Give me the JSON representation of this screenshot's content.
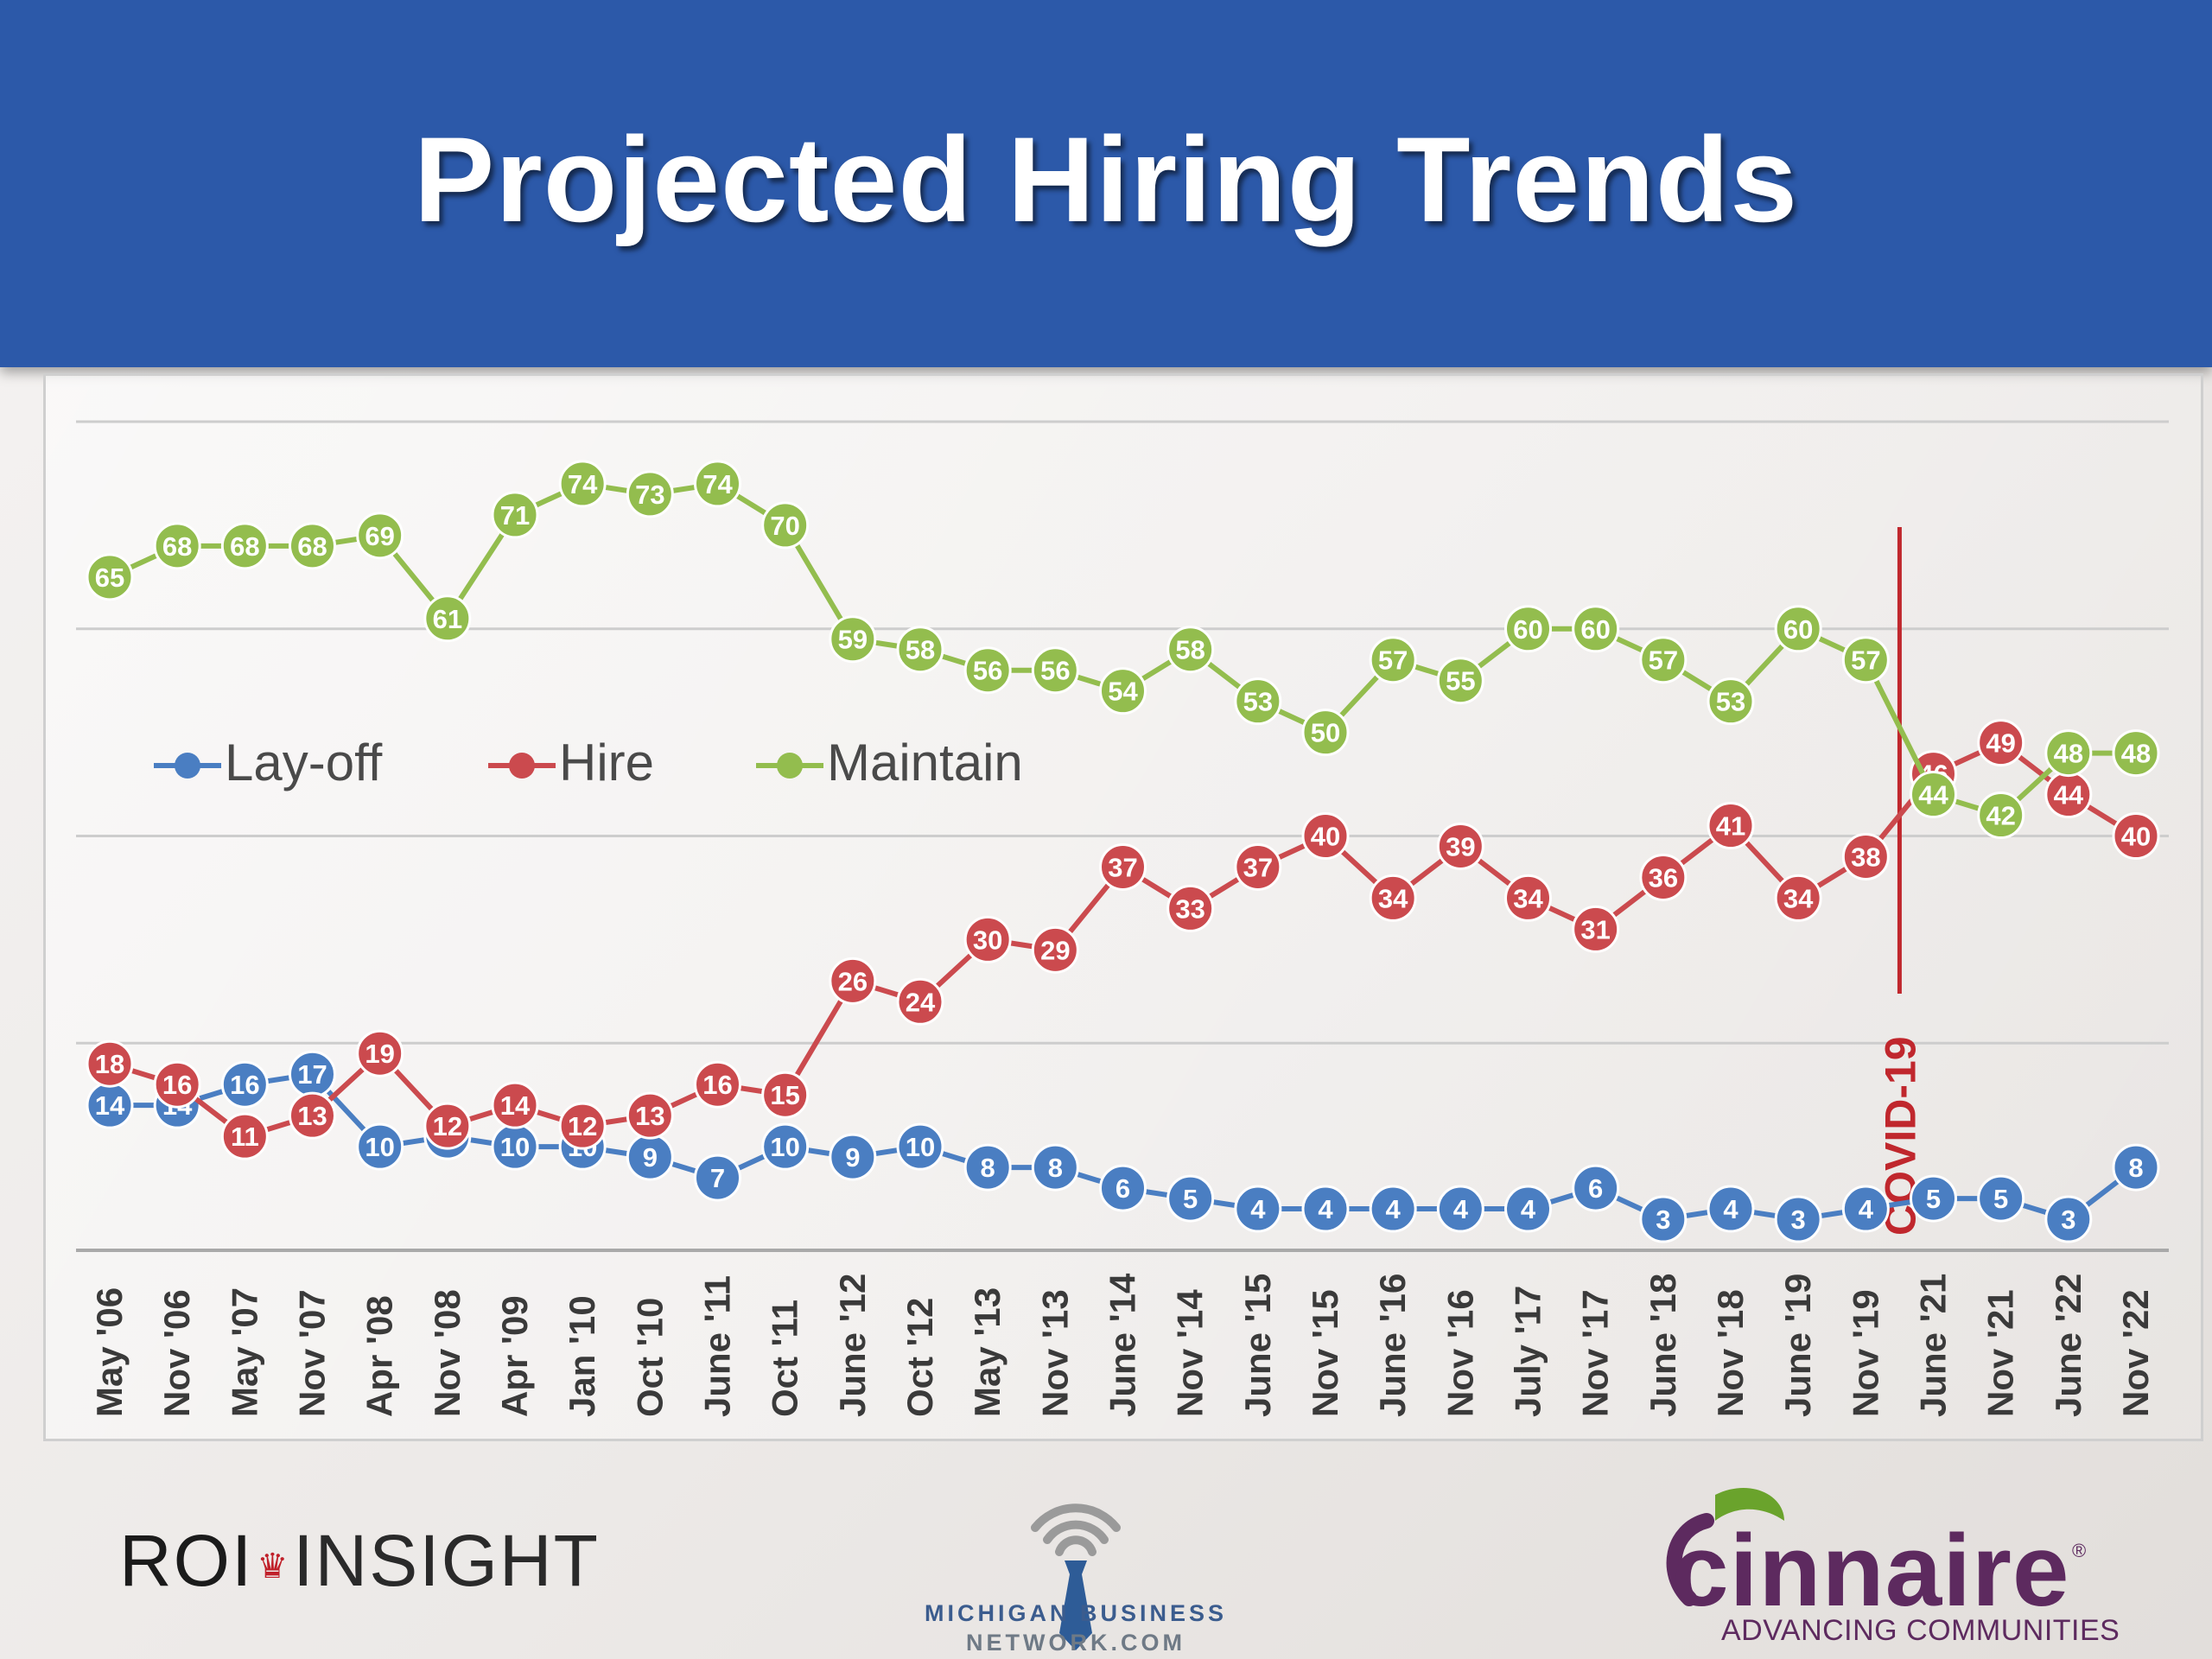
{
  "header": {
    "title": "Projected Hiring Trends"
  },
  "chart_data": {
    "type": "line",
    "title": "Projected Hiring Trends",
    "categories": [
      "May '06",
      "Nov '06",
      "May '07",
      "Nov '07",
      "Apr '08",
      "Nov '08",
      "Apr '09",
      "Jan '10",
      "Oct '10",
      "June '11",
      "Oct '11",
      "June '12",
      "Oct '12",
      "May '13",
      "Nov '13",
      "June '14",
      "Nov '14",
      "June '15",
      "Nov '15",
      "June '16",
      "Nov '16",
      "July '17",
      "Nov '17",
      "June '18",
      "Nov '18",
      "June '19",
      "Nov '19",
      "June '21",
      "Nov '21",
      "June '22",
      "Nov '22"
    ],
    "series": [
      {
        "name": "Lay-off",
        "color": "#4a7ec2",
        "values": [
          14,
          14,
          16,
          17,
          10,
          11,
          10,
          10,
          9,
          7,
          10,
          9,
          10,
          8,
          8,
          6,
          5,
          4,
          4,
          4,
          4,
          4,
          6,
          3,
          4,
          3,
          4,
          5,
          5,
          3,
          8
        ]
      },
      {
        "name": "Hire",
        "color": "#cb4a4e",
        "values": [
          18,
          16,
          11,
          13,
          19,
          12,
          14,
          12,
          13,
          16,
          15,
          26,
          24,
          30,
          29,
          37,
          33,
          37,
          40,
          34,
          39,
          34,
          31,
          36,
          41,
          34,
          38,
          46,
          49,
          44,
          40
        ]
      },
      {
        "name": "Maintain",
        "color": "#93bd4e",
        "values": [
          65,
          68,
          68,
          68,
          69,
          61,
          71,
          74,
          73,
          74,
          70,
          59,
          58,
          56,
          56,
          54,
          58,
          53,
          50,
          57,
          55,
          60,
          60,
          57,
          53,
          60,
          57,
          44,
          42,
          48,
          48
        ]
      }
    ],
    "ylim": [
      0,
      80
    ],
    "grid": true,
    "legend": "middle-left",
    "annotation": {
      "label": "COVID-19",
      "position": "between Nov '19 and June '21",
      "color": "#c0272d"
    }
  },
  "logos": {
    "roi": {
      "part1": "ROI",
      "part2": "INSIGHT"
    },
    "mbn": {
      "line1": "MICHIGAN BUSINESS",
      "line2": "NETWORK.COM"
    },
    "cinnaire": {
      "name": "cinnaire",
      "tagline": "ADVANCING COMMUNITIES",
      "reg": "®"
    }
  }
}
